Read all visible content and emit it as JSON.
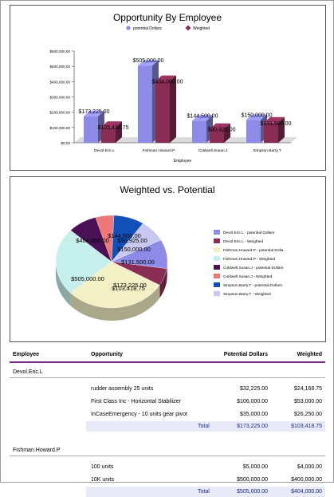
{
  "colors": {
    "potential": "#8c8ce8",
    "weighted": "#8a2d55",
    "axis": "#333333"
  },
  "chart_data": [
    {
      "type": "bar",
      "title": "Opportunity By Employee",
      "xlabel": "Employee",
      "ylabel": "",
      "categories": [
        "Devol.Eric.L",
        "Fishman.Howard.P",
        "Coldwell.Susan.J",
        "Simpson.Barry.T"
      ],
      "series": [
        {
          "name": "potential Dollars",
          "values": [
            173225,
            505000,
            144500,
            150000
          ],
          "labels": [
            "$173,225.00",
            "$505,000.00",
            "$144,500.00",
            "$150,000.00"
          ]
        },
        {
          "name": "Weighted",
          "values": [
            103418.75,
            404000,
            90925,
            131500
          ],
          "labels": [
            "$103,418.75",
            "$404,000.00",
            "$90,925.00",
            "$131,500.00"
          ]
        }
      ],
      "yticks": [
        "$0.00",
        "$100,000.00",
        "$200,000.00",
        "$300,000.00",
        "$400,000.00",
        "$500,000.00",
        "$600,000.00"
      ],
      "ylim": [
        0,
        600000
      ],
      "legend": "top"
    },
    {
      "type": "pie",
      "title": "Weighted vs. Potential",
      "slices": [
        {
          "label": "Devol.Eric.L - potential Dollars",
          "value": 173225,
          "color": "#8c8ce8",
          "text": "$173,225.00"
        },
        {
          "label": "Devol.Eric.L - Weighted",
          "value": 103418.75,
          "color": "#8a2d55",
          "text": "$103,418.75"
        },
        {
          "label": "Fishman.Howard.P - potential Dolla",
          "value": 505000,
          "color": "#f2f0c4",
          "text": "$505,000.00"
        },
        {
          "label": "Fishman.Howard.P - Weighted",
          "value": 404000,
          "color": "#c6f0ec",
          "text": "$404,000.00"
        },
        {
          "label": "Coldwell.Susan.J - potential Dollars",
          "value": 144500,
          "color": "#4a1055",
          "text": "$144,500.00"
        },
        {
          "label": "Coldwell.Susan.J - Weighted",
          "value": 90925,
          "color": "#ee7777",
          "text": "$90,925.00"
        },
        {
          "label": "Simpson.Barry.T - potential Dollars",
          "value": 150000,
          "color": "#1050b8",
          "text": "$150,000.00"
        },
        {
          "label": "Simpson.Barry.T - Weighted",
          "value": 131500,
          "color": "#c8c8f0",
          "text": "$131,500.00"
        }
      ],
      "legend": "right"
    }
  ],
  "table": {
    "headers": {
      "employee": "Employee",
      "opportunity": "Opportunity",
      "potential": "Potential Dollars",
      "weighted": "Weighted"
    },
    "groups": [
      {
        "name": "Devol.Eric.L",
        "rows": [
          {
            "opportunity": "rudder assembly 25 units",
            "potential": "$32,225.00",
            "weighted": "$24,168.75"
          },
          {
            "opportunity": "First Class Inc - Horizontal Stabilizer",
            "potential": "$106,000.00",
            "weighted": "$53,000.00"
          },
          {
            "opportunity": "InCaseEmergency - 10 units gear pivot",
            "potential": "$35,000.00",
            "weighted": "$26,250.00"
          }
        ],
        "total_label": "Total",
        "total_potential": "$173,225.00",
        "total_weighted": "$103,418.75"
      },
      {
        "name": "Fishman.Howard.P",
        "rows": [
          {
            "opportunity": "100 units",
            "potential": "$5,000.00",
            "weighted": "$4,000.00"
          },
          {
            "opportunity": "10K units",
            "potential": "$500,000.00",
            "weighted": "$400,000.00"
          }
        ],
        "total_label": "Total",
        "total_potential": "$505,000.00",
        "total_weighted": "$404,000.00"
      }
    ]
  }
}
